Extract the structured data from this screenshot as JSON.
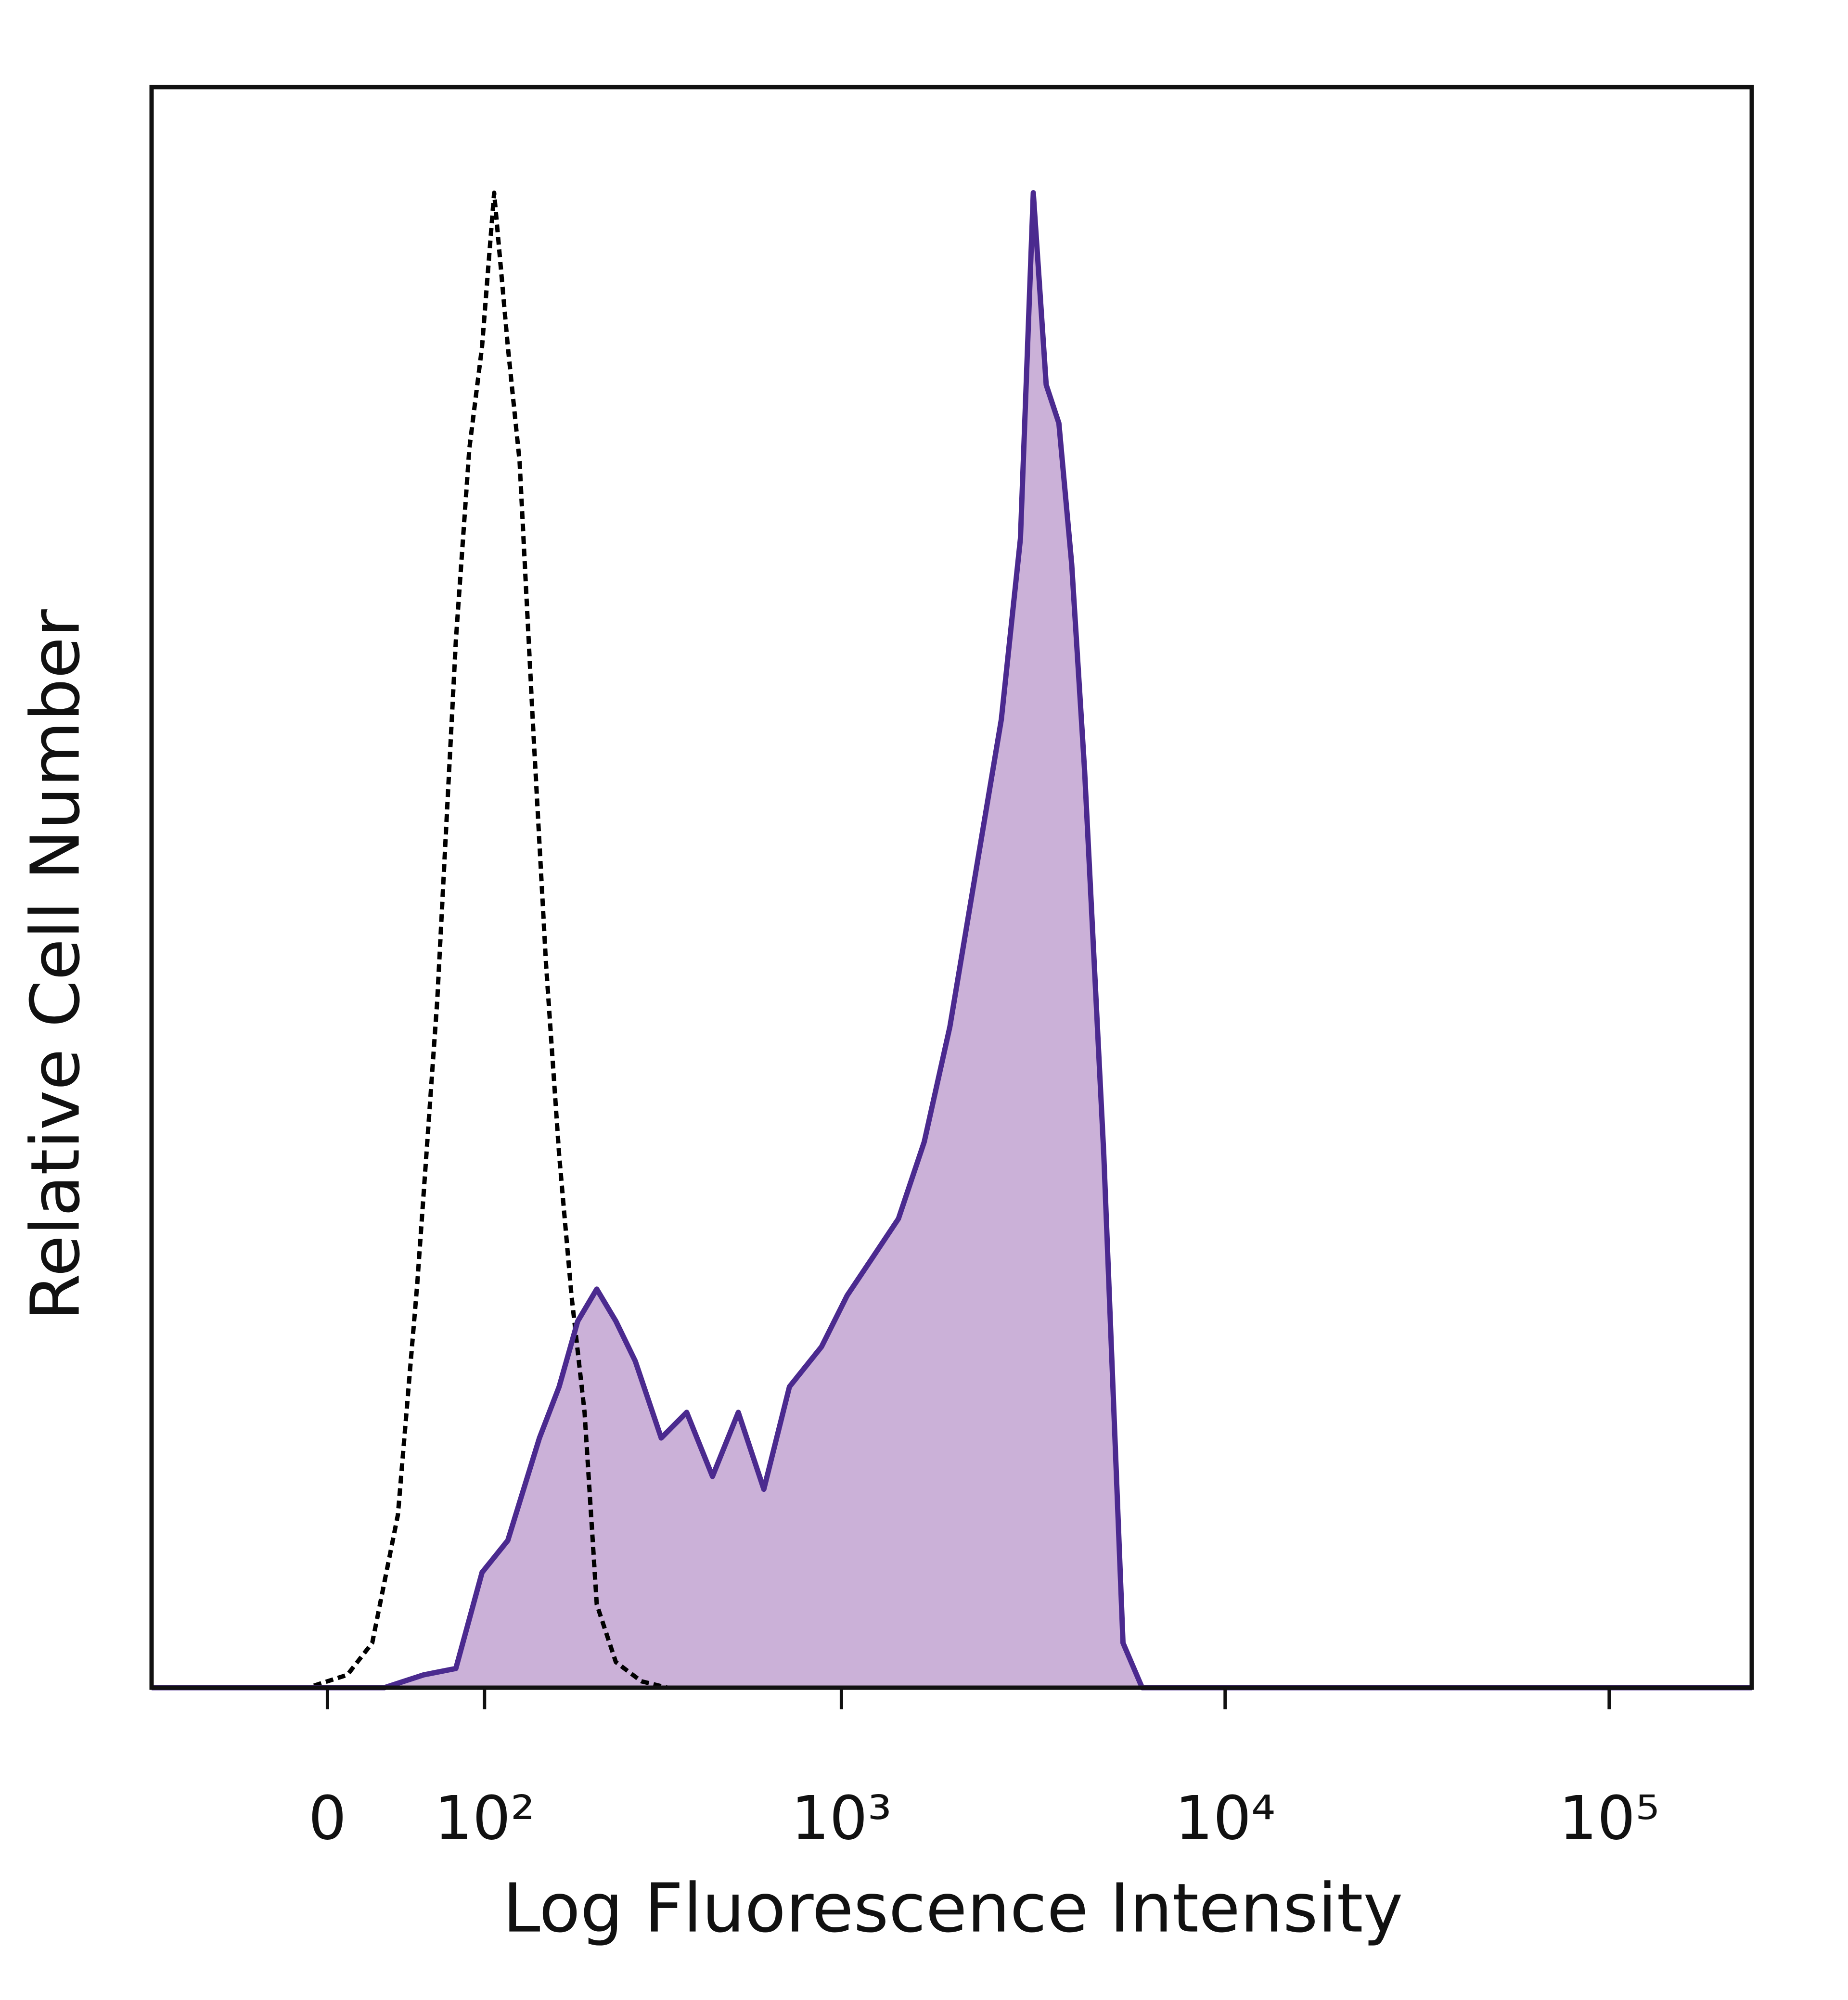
{
  "chart_data": {
    "type": "histogram-overlay",
    "x_label": "Log Fluorescence Intensity",
    "y_label": "Relative Cell Number",
    "xscale": "biexponential",
    "xlim": [
      -116,
      235000
    ],
    "ylim": [
      0,
      100
    ],
    "xticks": [
      0,
      {
        "value": 100,
        "label": "10²"
      },
      {
        "value": 1000,
        "label": "10³"
      },
      {
        "value": 10000,
        "label": "10⁴"
      },
      {
        "value": 100000,
        "label": "10⁵"
      }
    ],
    "series": [
      {
        "color": "#4b2a8f",
        "fill": "#cbb1d8",
        "dashed": false,
        "x": [
          -116,
          32,
          56,
          78,
          98,
          120,
          151,
          173,
          196,
          222,
          251,
          284,
          334,
          391,
          458,
          536,
          626,
          731,
          887,
          1035,
          1208,
          1409,
          1645,
          1919,
          2239,
          2613,
          2930,
          3165,
          3420,
          3690,
          3985,
          4305,
          4830,
          5420,
          6080,
          235000
        ],
        "values": [
          0,
          0,
          0.8,
          1.2,
          7.2,
          9.2,
          15.6,
          18.8,
          22.9,
          24.9,
          22.9,
          20.4,
          15.6,
          17.2,
          13.2,
          17.2,
          12.4,
          18.8,
          21.3,
          24.5,
          26.9,
          29.3,
          34.1,
          41.3,
          50.9,
          60.5,
          71.8,
          93.4,
          81.4,
          79.0,
          70.2,
          57.3,
          33.3,
          2.8,
          0,
          0
        ]
      },
      {
        "color": "#000000",
        "fill": null,
        "dashed": true,
        "x": [
          -116,
          -11,
          11,
          25,
          40,
          52,
          65,
          78,
          88,
          98,
          108,
          120,
          131,
          144,
          158,
          173,
          188,
          205,
          222,
          251,
          295,
          347,
          235000
        ],
        "values": [
          0,
          0,
          0.8,
          2.8,
          10.8,
          25.3,
          42.9,
          65.4,
          77.4,
          83.8,
          93.4,
          83.8,
          76.6,
          60.5,
          45.3,
          33.3,
          24.5,
          17.2,
          5.2,
          1.6,
          0.4,
          0,
          0
        ]
      }
    ]
  }
}
